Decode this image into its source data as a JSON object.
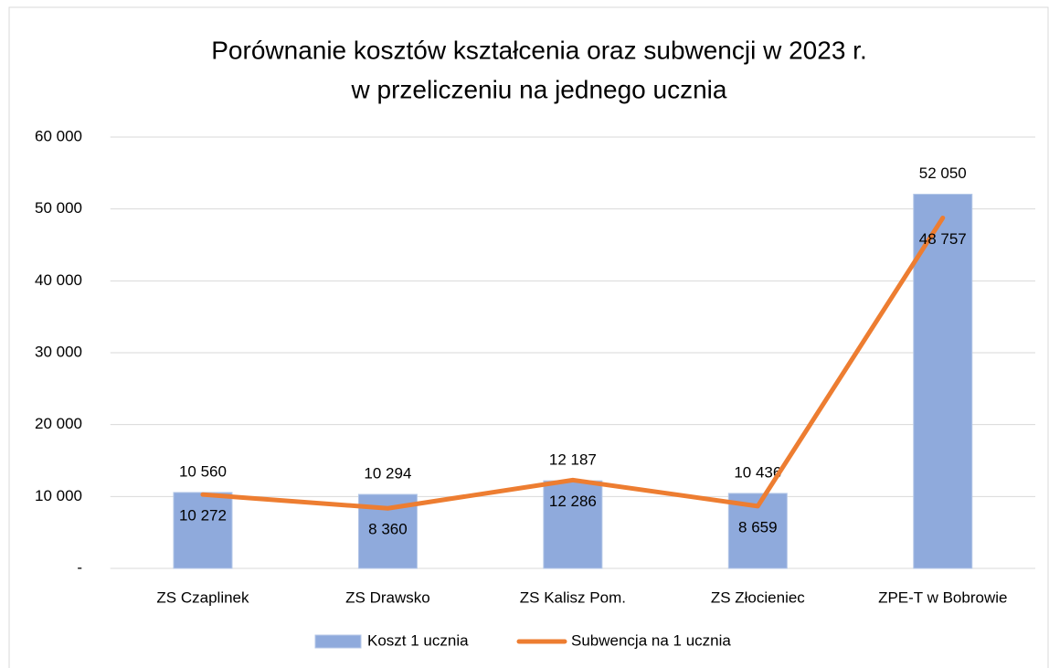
{
  "chart_data": {
    "type": "combo",
    "title": [
      "Porównanie kosztów kształcenia oraz subwencji w 2023 r.",
      "w przeliczeniu na jednego ucznia"
    ],
    "categories": [
      "ZS Czaplinek",
      "ZS Drawsko",
      "ZS Kalisz Pom.",
      "ZS Złocieniec",
      "ZPE-T w Bobrowie"
    ],
    "series": [
      {
        "name": "Koszt 1 ucznia",
        "type": "bar",
        "color": "#8faadc",
        "values": [
          10560,
          10294,
          12187,
          10436,
          52050
        ],
        "value_labels": [
          "10 560",
          "10 294",
          "12 187",
          "10 436",
          "52 050"
        ]
      },
      {
        "name": "Subwencja na 1 ucznia",
        "type": "line",
        "color": "#ed7d31",
        "values": [
          10272,
          8360,
          12286,
          8659,
          48757
        ],
        "value_labels": [
          "10 272",
          "8 360",
          "12 286",
          "8 659",
          "48 757"
        ]
      }
    ],
    "ylim": [
      0,
      60000
    ],
    "yticks": [
      {
        "value": 0,
        "label": "-"
      },
      {
        "value": 10000,
        "label": "10 000"
      },
      {
        "value": 20000,
        "label": "20 000"
      },
      {
        "value": 30000,
        "label": "30 000"
      },
      {
        "value": 40000,
        "label": "40 000"
      },
      {
        "value": 50000,
        "label": "50 000"
      },
      {
        "value": 60000,
        "label": "60 000"
      }
    ],
    "grid": true,
    "legend": "bottom"
  }
}
